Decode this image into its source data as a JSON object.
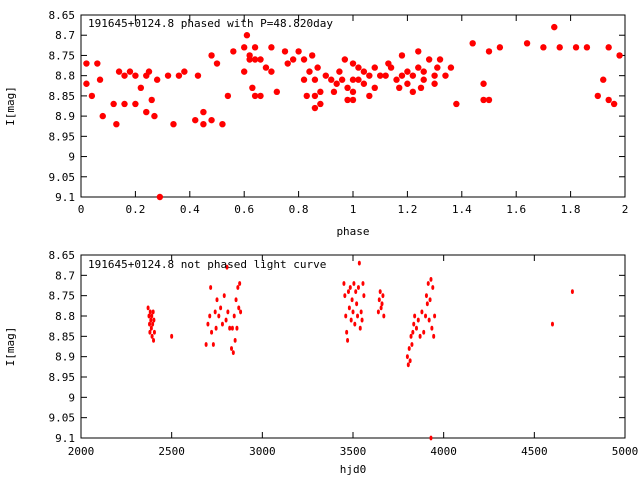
{
  "chart_data": [
    {
      "type": "scatter",
      "title": "191645+0124.8 phased with P=48.820day",
      "xlabel": "phase",
      "ylabel": "I[mag]",
      "xlim": [
        0,
        2
      ],
      "ylim": [
        9.1,
        8.65
      ],
      "y_inverted": true,
      "xticks": [
        "0",
        "0.2",
        "0.4",
        "0.6",
        "0.8",
        "1",
        "1.2",
        "1.4",
        "1.6",
        "1.8",
        "2"
      ],
      "yticks": [
        "8.65",
        "8.7",
        "8.75",
        "8.8",
        "8.85",
        "8.9",
        "8.95",
        "9",
        "9.05",
        "9.1"
      ],
      "marker_color": "#ff0000",
      "marker": "filled-circle",
      "points": [
        [
          0.02,
          8.77
        ],
        [
          0.02,
          8.82
        ],
        [
          0.04,
          8.85
        ],
        [
          0.06,
          8.77
        ],
        [
          0.07,
          8.81
        ],
        [
          0.08,
          8.9
        ],
        [
          0.12,
          8.87
        ],
        [
          0.13,
          8.92
        ],
        [
          0.14,
          8.79
        ],
        [
          0.16,
          8.8
        ],
        [
          0.16,
          8.87
        ],
        [
          0.18,
          8.79
        ],
        [
          0.2,
          8.8
        ],
        [
          0.2,
          8.87
        ],
        [
          0.22,
          8.83
        ],
        [
          0.24,
          8.8
        ],
        [
          0.24,
          8.89
        ],
        [
          0.25,
          8.79
        ],
        [
          0.26,
          8.86
        ],
        [
          0.27,
          8.9
        ],
        [
          0.28,
          8.81
        ],
        [
          0.29,
          9.1
        ],
        [
          0.32,
          8.8
        ],
        [
          0.34,
          8.92
        ],
        [
          0.36,
          8.8
        ],
        [
          0.38,
          8.79
        ],
        [
          0.42,
          8.91
        ],
        [
          0.43,
          8.8
        ],
        [
          0.45,
          8.89
        ],
        [
          0.45,
          8.92
        ],
        [
          0.48,
          8.91
        ],
        [
          0.48,
          8.75
        ],
        [
          0.5,
          8.77
        ],
        [
          0.52,
          8.92
        ],
        [
          0.54,
          8.85
        ],
        [
          0.56,
          8.74
        ],
        [
          0.6,
          8.73
        ],
        [
          0.6,
          8.79
        ],
        [
          0.61,
          8.7
        ],
        [
          0.62,
          8.75
        ],
        [
          0.62,
          8.76
        ],
        [
          0.63,
          8.83
        ],
        [
          0.64,
          8.73
        ],
        [
          0.64,
          8.85
        ],
        [
          0.64,
          8.76
        ],
        [
          0.66,
          8.76
        ],
        [
          0.66,
          8.85
        ],
        [
          0.68,
          8.78
        ],
        [
          0.7,
          8.73
        ],
        [
          0.7,
          8.79
        ],
        [
          0.72,
          8.84
        ],
        [
          0.75,
          8.74
        ],
        [
          0.76,
          8.77
        ],
        [
          0.78,
          8.76
        ],
        [
          0.8,
          8.74
        ],
        [
          0.82,
          8.76
        ],
        [
          0.82,
          8.81
        ],
        [
          0.83,
          8.85
        ],
        [
          0.84,
          8.79
        ],
        [
          0.85,
          8.75
        ],
        [
          0.86,
          8.81
        ],
        [
          0.86,
          8.85
        ],
        [
          0.86,
          8.88
        ],
        [
          0.87,
          8.78
        ],
        [
          0.88,
          8.84
        ],
        [
          0.88,
          8.87
        ],
        [
          0.9,
          8.8
        ],
        [
          0.92,
          8.81
        ],
        [
          0.93,
          8.84
        ],
        [
          0.94,
          8.82
        ],
        [
          0.95,
          8.79
        ],
        [
          0.96,
          8.81
        ],
        [
          0.97,
          8.76
        ],
        [
          0.98,
          8.83
        ],
        [
          0.98,
          8.86
        ],
        [
          1.0,
          8.77
        ],
        [
          1.0,
          8.81
        ],
        [
          1.0,
          8.84
        ],
        [
          1.0,
          8.86
        ],
        [
          1.02,
          8.78
        ],
        [
          1.02,
          8.81
        ],
        [
          1.04,
          8.79
        ],
        [
          1.04,
          8.82
        ],
        [
          1.06,
          8.85
        ],
        [
          1.06,
          8.8
        ],
        [
          1.08,
          8.78
        ],
        [
          1.08,
          8.83
        ],
        [
          1.1,
          8.8
        ],
        [
          1.12,
          8.8
        ],
        [
          1.13,
          8.77
        ],
        [
          1.14,
          8.78
        ],
        [
          1.16,
          8.81
        ],
        [
          1.17,
          8.83
        ],
        [
          1.18,
          8.8
        ],
        [
          1.18,
          8.75
        ],
        [
          1.2,
          8.79
        ],
        [
          1.2,
          8.82
        ],
        [
          1.22,
          8.8
        ],
        [
          1.22,
          8.84
        ],
        [
          1.24,
          8.78
        ],
        [
          1.24,
          8.74
        ],
        [
          1.25,
          8.83
        ],
        [
          1.26,
          8.79
        ],
        [
          1.26,
          8.81
        ],
        [
          1.28,
          8.76
        ],
        [
          1.3,
          8.8
        ],
        [
          1.3,
          8.82
        ],
        [
          1.31,
          8.78
        ],
        [
          1.32,
          8.76
        ],
        [
          1.34,
          8.8
        ],
        [
          1.36,
          8.78
        ],
        [
          1.38,
          8.87
        ],
        [
          1.44,
          8.72
        ],
        [
          1.48,
          8.82
        ],
        [
          1.48,
          8.86
        ],
        [
          1.5,
          8.74
        ],
        [
          1.5,
          8.86
        ],
        [
          1.54,
          8.73
        ],
        [
          1.64,
          8.72
        ],
        [
          1.7,
          8.73
        ],
        [
          1.74,
          8.68
        ],
        [
          1.76,
          8.73
        ],
        [
          1.82,
          8.73
        ],
        [
          1.86,
          8.73
        ],
        [
          1.9,
          8.85
        ],
        [
          1.92,
          8.81
        ],
        [
          1.94,
          8.73
        ],
        [
          1.94,
          8.86
        ],
        [
          1.96,
          8.87
        ],
        [
          1.98,
          8.75
        ]
      ]
    },
    {
      "type": "scatter",
      "title": "191645+0124.8 not phased light curve",
      "xlabel": "hjd0",
      "ylabel": "I[mag]",
      "xlim": [
        2000,
        5000
      ],
      "ylim": [
        9.1,
        8.65
      ],
      "y_inverted": true,
      "xticks": [
        "2000",
        "2500",
        "3000",
        "3500",
        "4000",
        "4500",
        "5000"
      ],
      "yticks": [
        "8.65",
        "8.7",
        "8.75",
        "8.8",
        "8.85",
        "8.9",
        "8.95",
        "9",
        "9.05",
        "9.1"
      ],
      "marker_color": "#ff0000",
      "marker": "small-dot",
      "points": [
        [
          2370,
          8.78
        ],
        [
          2375,
          8.8
        ],
        [
          2378,
          8.82
        ],
        [
          2380,
          8.84
        ],
        [
          2382,
          8.79
        ],
        [
          2385,
          8.81
        ],
        [
          2388,
          8.83
        ],
        [
          2390,
          8.8
        ],
        [
          2392,
          8.85
        ],
        [
          2395,
          8.82
        ],
        [
          2398,
          8.79
        ],
        [
          2400,
          8.86
        ],
        [
          2402,
          8.81
        ],
        [
          2405,
          8.84
        ],
        [
          2500,
          8.85
        ],
        [
          2690,
          8.87
        ],
        [
          2700,
          8.82
        ],
        [
          2710,
          8.8
        ],
        [
          2715,
          8.73
        ],
        [
          2720,
          8.84
        ],
        [
          2730,
          8.87
        ],
        [
          2740,
          8.79
        ],
        [
          2745,
          8.83
        ],
        [
          2750,
          8.76
        ],
        [
          2760,
          8.8
        ],
        [
          2770,
          8.78
        ],
        [
          2780,
          8.82
        ],
        [
          2790,
          8.75
        ],
        [
          2800,
          8.81
        ],
        [
          2805,
          8.68
        ],
        [
          2810,
          8.79
        ],
        [
          2820,
          8.83
        ],
        [
          2830,
          8.88
        ],
        [
          2835,
          8.83
        ],
        [
          2840,
          8.89
        ],
        [
          2845,
          8.8
        ],
        [
          2850,
          8.86
        ],
        [
          2855,
          8.76
        ],
        [
          2860,
          8.83
        ],
        [
          2865,
          8.73
        ],
        [
          2870,
          8.78
        ],
        [
          2875,
          8.72
        ],
        [
          2880,
          8.79
        ],
        [
          3450,
          8.72
        ],
        [
          3455,
          8.75
        ],
        [
          3460,
          8.8
        ],
        [
          3465,
          8.84
        ],
        [
          3470,
          8.86
        ],
        [
          3475,
          8.74
        ],
        [
          3480,
          8.78
        ],
        [
          3485,
          8.73
        ],
        [
          3490,
          8.81
        ],
        [
          3495,
          8.76
        ],
        [
          3500,
          8.79
        ],
        [
          3505,
          8.72
        ],
        [
          3510,
          8.82
        ],
        [
          3515,
          8.74
        ],
        [
          3520,
          8.77
        ],
        [
          3525,
          8.8
        ],
        [
          3530,
          8.73
        ],
        [
          3535,
          8.67
        ],
        [
          3540,
          8.83
        ],
        [
          3545,
          8.79
        ],
        [
          3550,
          8.81
        ],
        [
          3555,
          8.72
        ],
        [
          3560,
          8.75
        ],
        [
          3640,
          8.79
        ],
        [
          3645,
          8.76
        ],
        [
          3650,
          8.74
        ],
        [
          3655,
          8.78
        ],
        [
          3660,
          8.77
        ],
        [
          3665,
          8.75
        ],
        [
          3670,
          8.8
        ],
        [
          3800,
          8.9
        ],
        [
          3805,
          8.92
        ],
        [
          3810,
          8.88
        ],
        [
          3815,
          8.91
        ],
        [
          3820,
          8.85
        ],
        [
          3825,
          8.87
        ],
        [
          3830,
          8.84
        ],
        [
          3835,
          8.82
        ],
        [
          3840,
          8.8
        ],
        [
          3850,
          8.83
        ],
        [
          3860,
          8.81
        ],
        [
          3870,
          8.85
        ],
        [
          3880,
          8.79
        ],
        [
          3890,
          8.84
        ],
        [
          3900,
          8.8
        ],
        [
          3905,
          8.75
        ],
        [
          3910,
          8.77
        ],
        [
          3915,
          8.72
        ],
        [
          3920,
          8.81
        ],
        [
          3925,
          8.76
        ],
        [
          3930,
          8.71
        ],
        [
          3935,
          8.83
        ],
        [
          3940,
          8.73
        ],
        [
          3945,
          8.85
        ],
        [
          3950,
          8.8
        ],
        [
          3930,
          9.1
        ],
        [
          4600,
          8.82
        ],
        [
          4710,
          8.74
        ]
      ]
    }
  ]
}
